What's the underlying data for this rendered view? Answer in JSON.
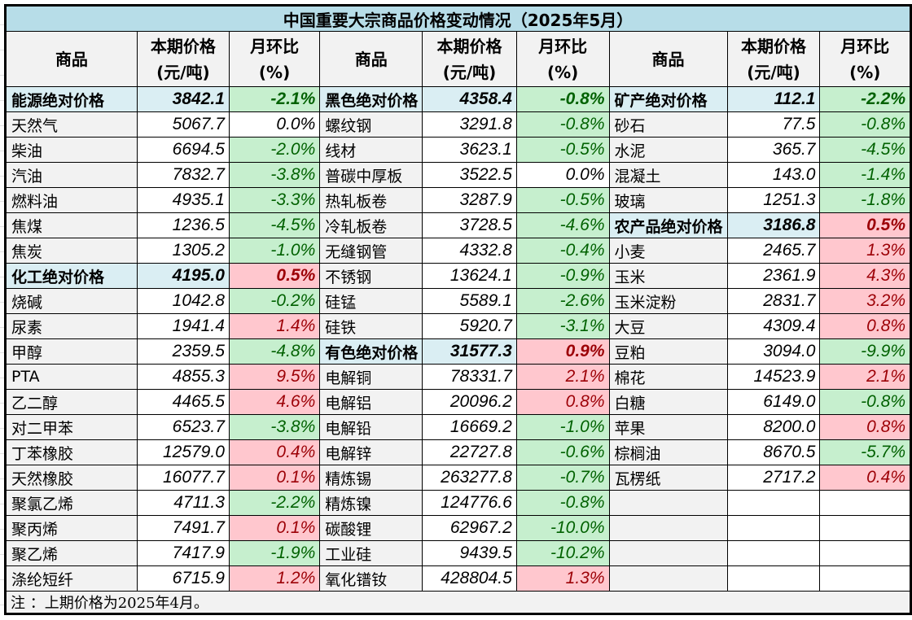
{
  "title": "中国重要大宗商品价格变动情况（2025年5月）",
  "headers": [
    {
      "line1": "商品",
      "line2": ""
    },
    {
      "line1": "本期价格",
      "line2": "(元/吨)"
    },
    {
      "line1": "月环比",
      "line2": "(%)"
    },
    {
      "line1": "商品",
      "line2": ""
    },
    {
      "line1": "本期价格",
      "line2": "(元/吨)"
    },
    {
      "line1": "月环比",
      "line2": "(%)"
    },
    {
      "line1": "商品",
      "line2": ""
    },
    {
      "line1": "本期价格",
      "line2": "(元/吨)"
    },
    {
      "line1": "月环比",
      "line2": "(%)"
    }
  ],
  "colors": {
    "negative_bg": "#c6efce",
    "negative_text": "#006100",
    "positive_bg": "#ffc7ce",
    "positive_text": "#9c0006",
    "category_bg": "#daeef3",
    "title_bg": "#b7dde8"
  },
  "rows": [
    [
      {
        "name": "能源绝对价格",
        "price": "3842.1",
        "pct": "-2.1%",
        "cat": true
      },
      {
        "name": "黑色绝对价格",
        "price": "4358.4",
        "pct": "-0.8%",
        "cat": true
      },
      {
        "name": "矿产绝对价格",
        "price": "112.1",
        "pct": "-2.2%",
        "cat": true
      }
    ],
    [
      {
        "name": "天然气",
        "price": "5067.7",
        "pct": "0.0%"
      },
      {
        "name": "螺纹钢",
        "price": "3291.8",
        "pct": "-0.8%"
      },
      {
        "name": "砂石",
        "price": "77.5",
        "pct": "-0.8%"
      }
    ],
    [
      {
        "name": "柴油",
        "price": "6694.5",
        "pct": "-2.0%"
      },
      {
        "name": "线材",
        "price": "3623.1",
        "pct": "-0.5%"
      },
      {
        "name": "水泥",
        "price": "365.7",
        "pct": "-4.5%"
      }
    ],
    [
      {
        "name": "汽油",
        "price": "7832.7",
        "pct": "-3.8%"
      },
      {
        "name": "普碳中厚板",
        "price": "3522.5",
        "pct": "0.0%"
      },
      {
        "name": "混凝土",
        "price": "143.0",
        "pct": "-1.4%"
      }
    ],
    [
      {
        "name": "燃料油",
        "price": "4935.1",
        "pct": "-3.3%"
      },
      {
        "name": "热轧板卷",
        "price": "3287.9",
        "pct": "-0.5%"
      },
      {
        "name": "玻璃",
        "price": "1251.3",
        "pct": "-1.8%"
      }
    ],
    [
      {
        "name": "焦煤",
        "price": "1236.5",
        "pct": "-4.5%"
      },
      {
        "name": "冷轧板卷",
        "price": "3728.5",
        "pct": "-4.6%"
      },
      {
        "name": "农产品绝对价格",
        "price": "3186.8",
        "pct": "0.5%",
        "cat": true
      }
    ],
    [
      {
        "name": "焦炭",
        "price": "1305.2",
        "pct": "-1.0%"
      },
      {
        "name": "无缝钢管",
        "price": "4332.8",
        "pct": "-0.4%"
      },
      {
        "name": "小麦",
        "price": "2465.7",
        "pct": "1.3%"
      }
    ],
    [
      {
        "name": "化工绝对价格",
        "price": "4195.0",
        "pct": "0.5%",
        "cat": true
      },
      {
        "name": "不锈钢",
        "price": "13624.1",
        "pct": "-0.9%"
      },
      {
        "name": "玉米",
        "price": "2361.9",
        "pct": "4.3%"
      }
    ],
    [
      {
        "name": "烧碱",
        "price": "1042.8",
        "pct": "-0.2%"
      },
      {
        "name": "硅锰",
        "price": "5589.1",
        "pct": "-2.6%"
      },
      {
        "name": "玉米淀粉",
        "price": "2831.7",
        "pct": "3.2%"
      }
    ],
    [
      {
        "name": "尿素",
        "price": "1941.4",
        "pct": "1.4%"
      },
      {
        "name": "硅铁",
        "price": "5920.7",
        "pct": "-3.1%"
      },
      {
        "name": "大豆",
        "price": "4309.4",
        "pct": "0.8%"
      }
    ],
    [
      {
        "name": "甲醇",
        "price": "2359.5",
        "pct": "-4.8%"
      },
      {
        "name": "有色绝对价格",
        "price": "31577.3",
        "pct": "0.9%",
        "cat": true
      },
      {
        "name": "豆粕",
        "price": "3094.0",
        "pct": "-9.9%"
      }
    ],
    [
      {
        "name": "PTA",
        "price": "4855.3",
        "pct": "9.5%"
      },
      {
        "name": "电解铜",
        "price": "78331.7",
        "pct": "2.1%"
      },
      {
        "name": "棉花",
        "price": "14523.9",
        "pct": "2.1%"
      }
    ],
    [
      {
        "name": "乙二醇",
        "price": "4465.5",
        "pct": "4.6%"
      },
      {
        "name": "电解铝",
        "price": "20096.2",
        "pct": "0.8%"
      },
      {
        "name": "白糖",
        "price": "6149.0",
        "pct": "-0.8%"
      }
    ],
    [
      {
        "name": "对二甲苯",
        "price": "6523.7",
        "pct": "-3.8%"
      },
      {
        "name": "电解铅",
        "price": "16669.2",
        "pct": "-1.0%"
      },
      {
        "name": "苹果",
        "price": "8200.0",
        "pct": "0.8%"
      }
    ],
    [
      {
        "name": "丁苯橡胶",
        "price": "12579.0",
        "pct": "0.4%"
      },
      {
        "name": "电解锌",
        "price": "22727.8",
        "pct": "-0.6%"
      },
      {
        "name": "棕榈油",
        "price": "8670.5",
        "pct": "-5.7%"
      }
    ],
    [
      {
        "name": "天然橡胶",
        "price": "16077.7",
        "pct": "0.1%"
      },
      {
        "name": "精炼锡",
        "price": "263277.8",
        "pct": "-0.7%"
      },
      {
        "name": "瓦楞纸",
        "price": "2717.2",
        "pct": "0.4%"
      }
    ],
    [
      {
        "name": "聚氯乙烯",
        "price": "4711.3",
        "pct": "-2.2%"
      },
      {
        "name": "精炼镍",
        "price": "124776.6",
        "pct": "-0.8%"
      },
      {
        "name": "",
        "price": "",
        "pct": ""
      }
    ],
    [
      {
        "name": "聚丙烯",
        "price": "7491.7",
        "pct": "0.1%"
      },
      {
        "name": "碳酸锂",
        "price": "62967.2",
        "pct": "-10.0%"
      },
      {
        "name": "",
        "price": "",
        "pct": ""
      }
    ],
    [
      {
        "name": "聚乙烯",
        "price": "7417.9",
        "pct": "-1.9%"
      },
      {
        "name": "工业硅",
        "price": "9439.5",
        "pct": "-10.2%"
      },
      {
        "name": "",
        "price": "",
        "pct": ""
      }
    ],
    [
      {
        "name": "涤纶短纤",
        "price": "6715.9",
        "pct": "1.2%"
      },
      {
        "name": "氧化镨钕",
        "price": "428804.5",
        "pct": "1.3%"
      },
      {
        "name": "",
        "price": "",
        "pct": ""
      }
    ]
  ],
  "footer": "注 ：上期价格为2025年4月。"
}
